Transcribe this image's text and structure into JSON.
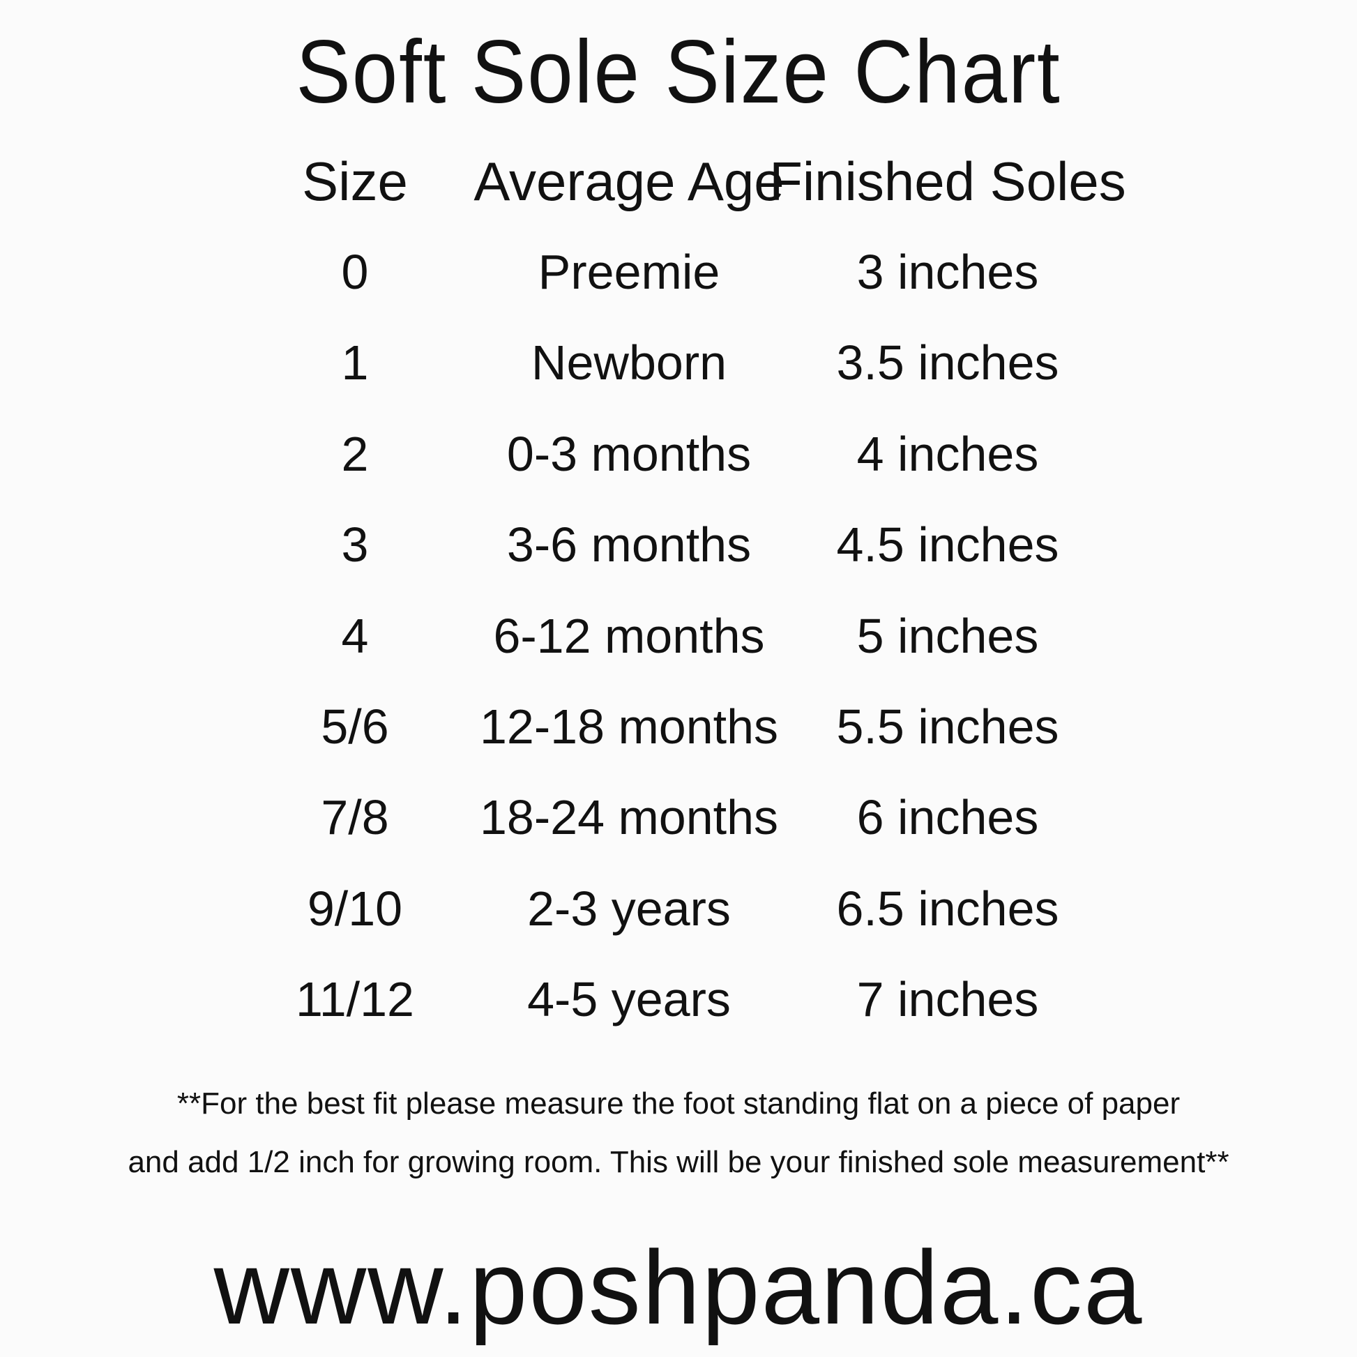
{
  "title": "Soft Sole Size Chart",
  "table": {
    "headers": [
      "Size",
      "Average Age",
      "Finished Soles"
    ],
    "rows": [
      [
        "0",
        "Preemie",
        "3 inches"
      ],
      [
        "1",
        "Newborn",
        "3.5 inches"
      ],
      [
        "2",
        "0-3 months",
        "4 inches"
      ],
      [
        "3",
        "3-6 months",
        "4.5 inches"
      ],
      [
        "4",
        "6-12 months",
        "5 inches"
      ],
      [
        "5/6",
        "12-18 months",
        "5.5 inches"
      ],
      [
        "7/8",
        "18-24 months",
        "6 inches"
      ],
      [
        "9/10",
        "2-3 years",
        "6.5 inches"
      ],
      [
        "11/12",
        "4-5 years",
        "7 inches"
      ]
    ]
  },
  "note": {
    "line1": "**For the best fit please measure the foot standing flat on a piece of paper",
    "line2": "and add 1/2 inch for growing room. This will be your finished sole measurement**"
  },
  "website": "www.poshpanda.ca"
}
